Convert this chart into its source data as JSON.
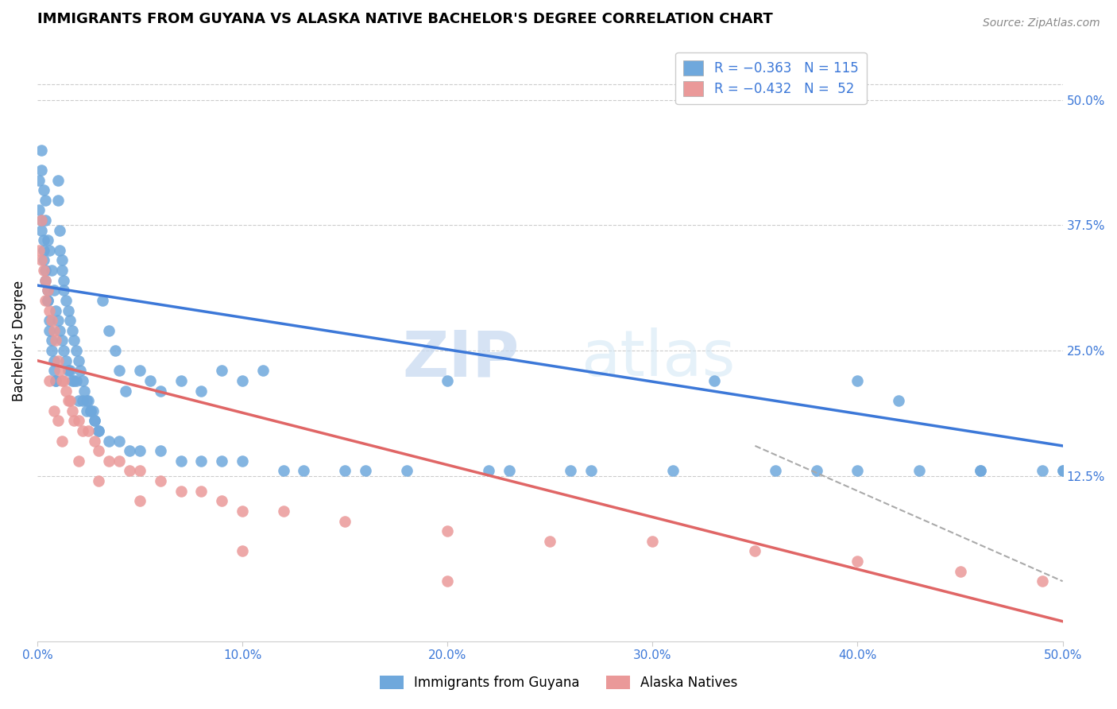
{
  "title": "IMMIGRANTS FROM GUYANA VS ALASKA NATIVE BACHELOR'S DEGREE CORRELATION CHART",
  "source": "Source: ZipAtlas.com",
  "ylabel": "Bachelor's Degree",
  "right_yticks": [
    "50.0%",
    "37.5%",
    "25.0%",
    "12.5%"
  ],
  "right_ytick_vals": [
    0.5,
    0.375,
    0.25,
    0.125
  ],
  "legend_label1": "Immigrants from Guyana",
  "legend_label2": "Alaska Natives",
  "blue_color": "#6fa8dc",
  "pink_color": "#ea9999",
  "blue_line_color": "#3c78d8",
  "pink_line_color": "#e06666",
  "dashed_line_color": "#aaaaaa",
  "watermark_zip": "ZIP",
  "watermark_atlas": "atlas",
  "blue_scatter_x": [
    0.001,
    0.001,
    0.002,
    0.002,
    0.003,
    0.003,
    0.003,
    0.004,
    0.004,
    0.005,
    0.005,
    0.005,
    0.006,
    0.006,
    0.007,
    0.007,
    0.008,
    0.008,
    0.009,
    0.009,
    0.01,
    0.01,
    0.011,
    0.011,
    0.012,
    0.012,
    0.013,
    0.013,
    0.014,
    0.015,
    0.016,
    0.017,
    0.018,
    0.019,
    0.02,
    0.021,
    0.022,
    0.023,
    0.024,
    0.025,
    0.026,
    0.027,
    0.028,
    0.03,
    0.032,
    0.035,
    0.038,
    0.04,
    0.043,
    0.05,
    0.055,
    0.06,
    0.07,
    0.08,
    0.09,
    0.1,
    0.11,
    0.13,
    0.16,
    0.2,
    0.23,
    0.27,
    0.33,
    0.38,
    0.4,
    0.42,
    0.46,
    0.002,
    0.002,
    0.003,
    0.004,
    0.004,
    0.005,
    0.006,
    0.007,
    0.008,
    0.009,
    0.01,
    0.011,
    0.012,
    0.013,
    0.014,
    0.015,
    0.016,
    0.017,
    0.018,
    0.019,
    0.02,
    0.022,
    0.024,
    0.026,
    0.028,
    0.03,
    0.035,
    0.04,
    0.045,
    0.05,
    0.06,
    0.07,
    0.08,
    0.09,
    0.1,
    0.12,
    0.15,
    0.18,
    0.22,
    0.26,
    0.31,
    0.36,
    0.4,
    0.43,
    0.46,
    0.49,
    0.5,
    0.5
  ],
  "blue_scatter_y": [
    0.42,
    0.39,
    0.38,
    0.37,
    0.36,
    0.35,
    0.34,
    0.33,
    0.32,
    0.31,
    0.3,
    0.3,
    0.28,
    0.27,
    0.26,
    0.25,
    0.24,
    0.23,
    0.22,
    0.22,
    0.42,
    0.4,
    0.37,
    0.35,
    0.34,
    0.33,
    0.32,
    0.31,
    0.3,
    0.29,
    0.28,
    0.27,
    0.26,
    0.25,
    0.24,
    0.23,
    0.22,
    0.21,
    0.2,
    0.2,
    0.19,
    0.19,
    0.18,
    0.17,
    0.3,
    0.27,
    0.25,
    0.23,
    0.21,
    0.23,
    0.22,
    0.21,
    0.22,
    0.21,
    0.23,
    0.22,
    0.23,
    0.13,
    0.13,
    0.22,
    0.13,
    0.13,
    0.22,
    0.13,
    0.22,
    0.2,
    0.13,
    0.45,
    0.43,
    0.41,
    0.4,
    0.38,
    0.36,
    0.35,
    0.33,
    0.31,
    0.29,
    0.28,
    0.27,
    0.26,
    0.25,
    0.24,
    0.23,
    0.23,
    0.22,
    0.22,
    0.22,
    0.2,
    0.2,
    0.19,
    0.19,
    0.18,
    0.17,
    0.16,
    0.16,
    0.15,
    0.15,
    0.15,
    0.14,
    0.14,
    0.14,
    0.14,
    0.13,
    0.13,
    0.13,
    0.13,
    0.13,
    0.13,
    0.13,
    0.13,
    0.13,
    0.13,
    0.13,
    0.13,
    0.13
  ],
  "pink_scatter_x": [
    0.001,
    0.002,
    0.003,
    0.004,
    0.005,
    0.006,
    0.007,
    0.008,
    0.009,
    0.01,
    0.011,
    0.012,
    0.013,
    0.014,
    0.015,
    0.016,
    0.017,
    0.018,
    0.02,
    0.022,
    0.025,
    0.028,
    0.03,
    0.035,
    0.04,
    0.045,
    0.05,
    0.06,
    0.07,
    0.08,
    0.09,
    0.1,
    0.12,
    0.15,
    0.2,
    0.25,
    0.3,
    0.35,
    0.4,
    0.45,
    0.49,
    0.002,
    0.004,
    0.006,
    0.008,
    0.01,
    0.012,
    0.02,
    0.03,
    0.05,
    0.1,
    0.2
  ],
  "pink_scatter_y": [
    0.35,
    0.34,
    0.33,
    0.32,
    0.31,
    0.29,
    0.28,
    0.27,
    0.26,
    0.24,
    0.23,
    0.22,
    0.22,
    0.21,
    0.2,
    0.2,
    0.19,
    0.18,
    0.18,
    0.17,
    0.17,
    0.16,
    0.15,
    0.14,
    0.14,
    0.13,
    0.13,
    0.12,
    0.11,
    0.11,
    0.1,
    0.09,
    0.09,
    0.08,
    0.07,
    0.06,
    0.06,
    0.05,
    0.04,
    0.03,
    0.02,
    0.38,
    0.3,
    0.22,
    0.19,
    0.18,
    0.16,
    0.14,
    0.12,
    0.1,
    0.05,
    0.02
  ],
  "blue_line_x": [
    0.0,
    0.5
  ],
  "blue_line_y": [
    0.315,
    0.155
  ],
  "pink_line_x": [
    0.0,
    0.5
  ],
  "pink_line_y": [
    0.24,
    -0.02
  ],
  "dashed_line_x": [
    0.35,
    0.5
  ],
  "dashed_line_y": [
    0.155,
    0.02
  ],
  "xmin": 0.0,
  "xmax": 0.5,
  "ymin": -0.04,
  "ymax": 0.56,
  "xtick_vals": [
    0.0,
    0.1,
    0.2,
    0.3,
    0.4,
    0.5
  ],
  "xtick_labels": [
    "0.0%",
    "10.0%",
    "20.0%",
    "30.0%",
    "40.0%",
    "50.0%"
  ]
}
